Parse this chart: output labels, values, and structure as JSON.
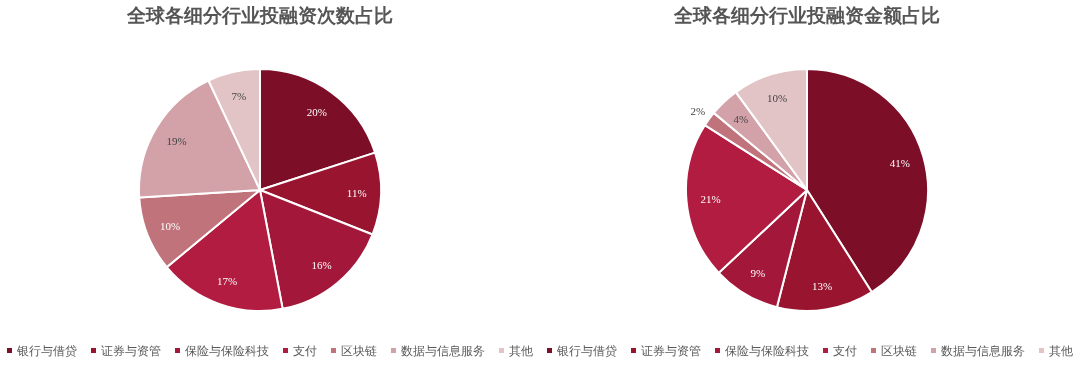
{
  "chart_data": [
    {
      "type": "pie",
      "title": "全球各细分行业投融资次数占比",
      "categories": [
        "银行与借贷",
        "证券与资管",
        "保险与保险科技",
        "支付",
        "区块链",
        "数据与信息服务",
        "其他"
      ],
      "values": [
        20,
        11,
        16,
        17,
        10,
        19,
        7
      ],
      "value_labels": [
        "20%",
        "11%",
        "16%",
        "17%",
        "10%",
        "19%",
        "7%"
      ],
      "colors": [
        "#7c0f27",
        "#99152f",
        "#a3183a",
        "#b21c40",
        "#c0737a",
        "#d3a2a9",
        "#e2c4c7"
      ],
      "legend": "bottom"
    },
    {
      "type": "pie",
      "title": "全球各细分行业投融资金额占比",
      "categories": [
        "银行与借贷",
        "证券与资管",
        "保险与保险科技",
        "支付",
        "区块链",
        "数据与信息服务",
        "其他"
      ],
      "values": [
        41,
        13,
        9,
        21,
        2,
        4,
        10
      ],
      "value_labels": [
        "41%",
        "13%",
        "9%",
        "21%",
        "2%",
        "4%",
        "10%"
      ],
      "colors": [
        "#7c0f27",
        "#99152f",
        "#a3183a",
        "#b21c40",
        "#c0737a",
        "#d3a2a9",
        "#e2c4c7"
      ],
      "legend": "bottom"
    }
  ]
}
